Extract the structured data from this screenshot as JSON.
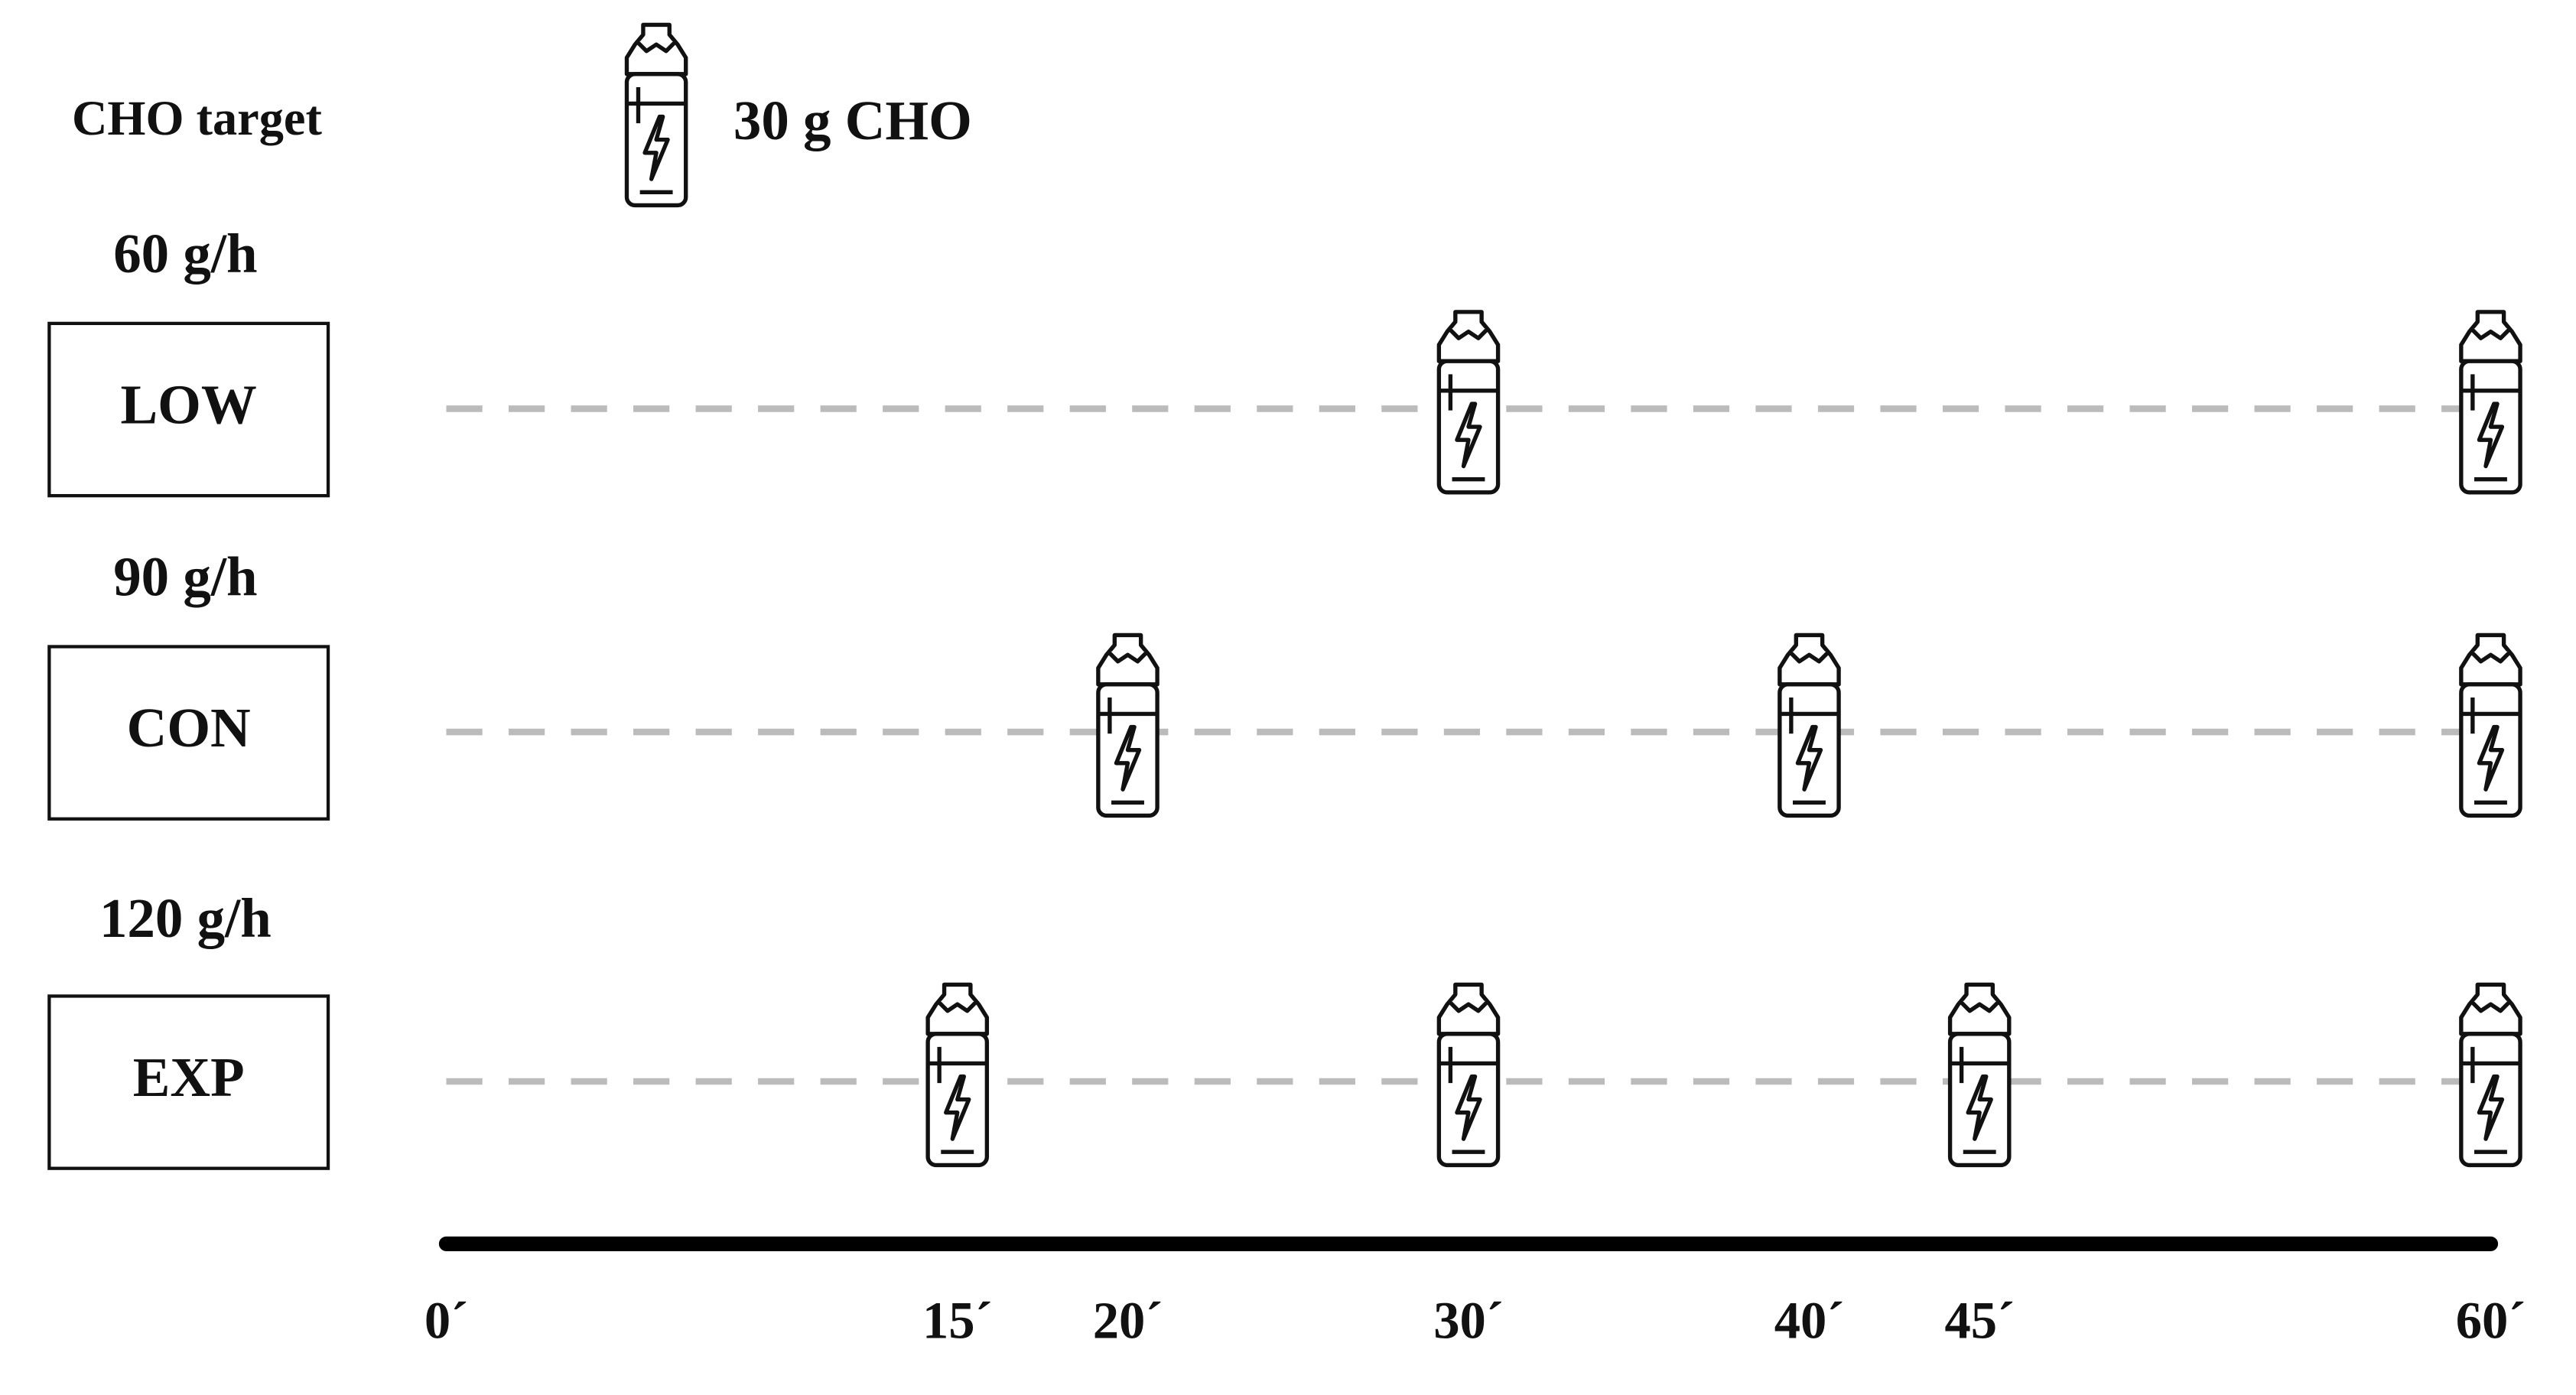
{
  "header": {
    "title": "CHO target",
    "legend": "30 g CHO"
  },
  "rows": [
    {
      "rate": "60 g/h",
      "group": "LOW",
      "gels": [
        30,
        60
      ]
    },
    {
      "rate": "90 g/h",
      "group": "CON",
      "gels": [
        20,
        40,
        60
      ]
    },
    {
      "rate": "120 g/h",
      "group": "EXP",
      "gels": [
        15,
        30,
        45,
        60
      ]
    }
  ],
  "axis": {
    "xlim": [
      0,
      60
    ],
    "ticks": [
      {
        "value": 0,
        "label": "0´"
      },
      {
        "value": 15,
        "label": "15´"
      },
      {
        "value": 20,
        "label": "20´"
      },
      {
        "value": 30,
        "label": "30´"
      },
      {
        "value": 40,
        "label": "40´"
      },
      {
        "value": 45,
        "label": "45´"
      },
      {
        "value": 60,
        "label": "60´"
      }
    ]
  }
}
